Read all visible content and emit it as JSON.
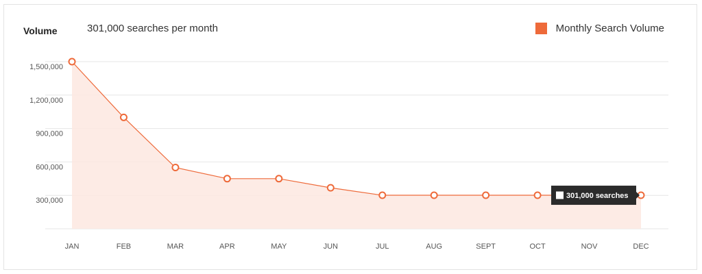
{
  "header": {
    "title": "Volume",
    "subtitle": "301,000 searches per month",
    "legend_label": "Monthly Search Volume"
  },
  "colors": {
    "accent": "#ee6a3a",
    "area_fill": "#fde8e1",
    "grid": "#e6e6e6",
    "tooltip_bg": "#2b2b2b"
  },
  "tooltip": {
    "text": "301,000 searches",
    "month": "DEC"
  },
  "chart_data": {
    "type": "area",
    "title": "Volume",
    "subtitle": "301,000 searches per month",
    "categories": [
      "JAN",
      "FEB",
      "MAR",
      "APR",
      "MAY",
      "JUN",
      "JUL",
      "AUG",
      "SEPT",
      "OCT",
      "NOV",
      "DEC"
    ],
    "series": [
      {
        "name": "Monthly Search Volume",
        "values": [
          1500000,
          1000000,
          550000,
          450000,
          450000,
          368000,
          301000,
          301000,
          301000,
          301000,
          301000,
          301000
        ]
      }
    ],
    "y_ticks": [
      300000,
      600000,
      900000,
      1200000,
      1500000
    ],
    "y_tick_labels": [
      "300,000",
      "600,000",
      "900,000",
      "1,200,000",
      "1,500,000"
    ],
    "ylim": [
      0,
      1500000
    ],
    "grid": true,
    "legend_position": "top-right"
  }
}
